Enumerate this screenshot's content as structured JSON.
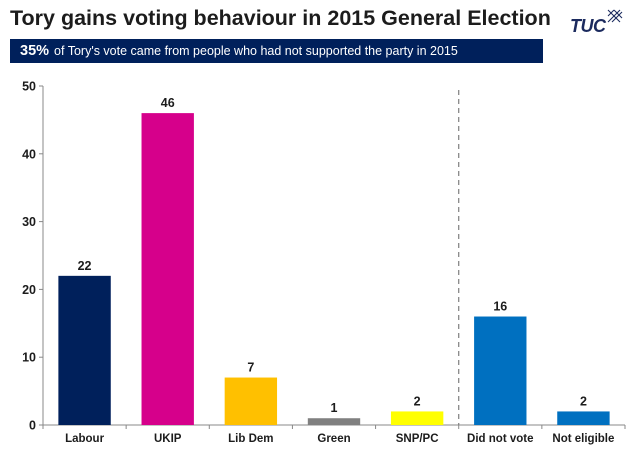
{
  "header": {
    "title": "Tory gains voting behaviour in 2015 General Election",
    "logo_text": "TUC"
  },
  "banner": {
    "percentage": "35%",
    "text": "of Tory's vote came from people who had not supported the party in 2015"
  },
  "colors": {
    "banner_bg": "#00205b",
    "axis": "#888888",
    "divider": "#7f7f7f"
  },
  "chart_data": {
    "type": "bar",
    "title": "",
    "xlabel": "",
    "ylabel": "",
    "ylim": [
      0,
      50
    ],
    "yticks": [
      0,
      10,
      20,
      30,
      40,
      50
    ],
    "grid": false,
    "legend": "none",
    "categories": [
      "Labour",
      "UKIP",
      "Lib Dem",
      "Green",
      "SNP/PC",
      "Did not vote",
      "Not eligible"
    ],
    "values": [
      22,
      46,
      7,
      1,
      2,
      16,
      2
    ],
    "value_labels": [
      "22",
      "46",
      "7",
      "1",
      "2",
      "16",
      "2"
    ],
    "bar_colors": [
      "#00205b",
      "#d6008b",
      "#ffc000",
      "#808080",
      "#ffff00",
      "#0070c0",
      "#0070c0"
    ],
    "divider_after_category": "SNP/PC"
  }
}
